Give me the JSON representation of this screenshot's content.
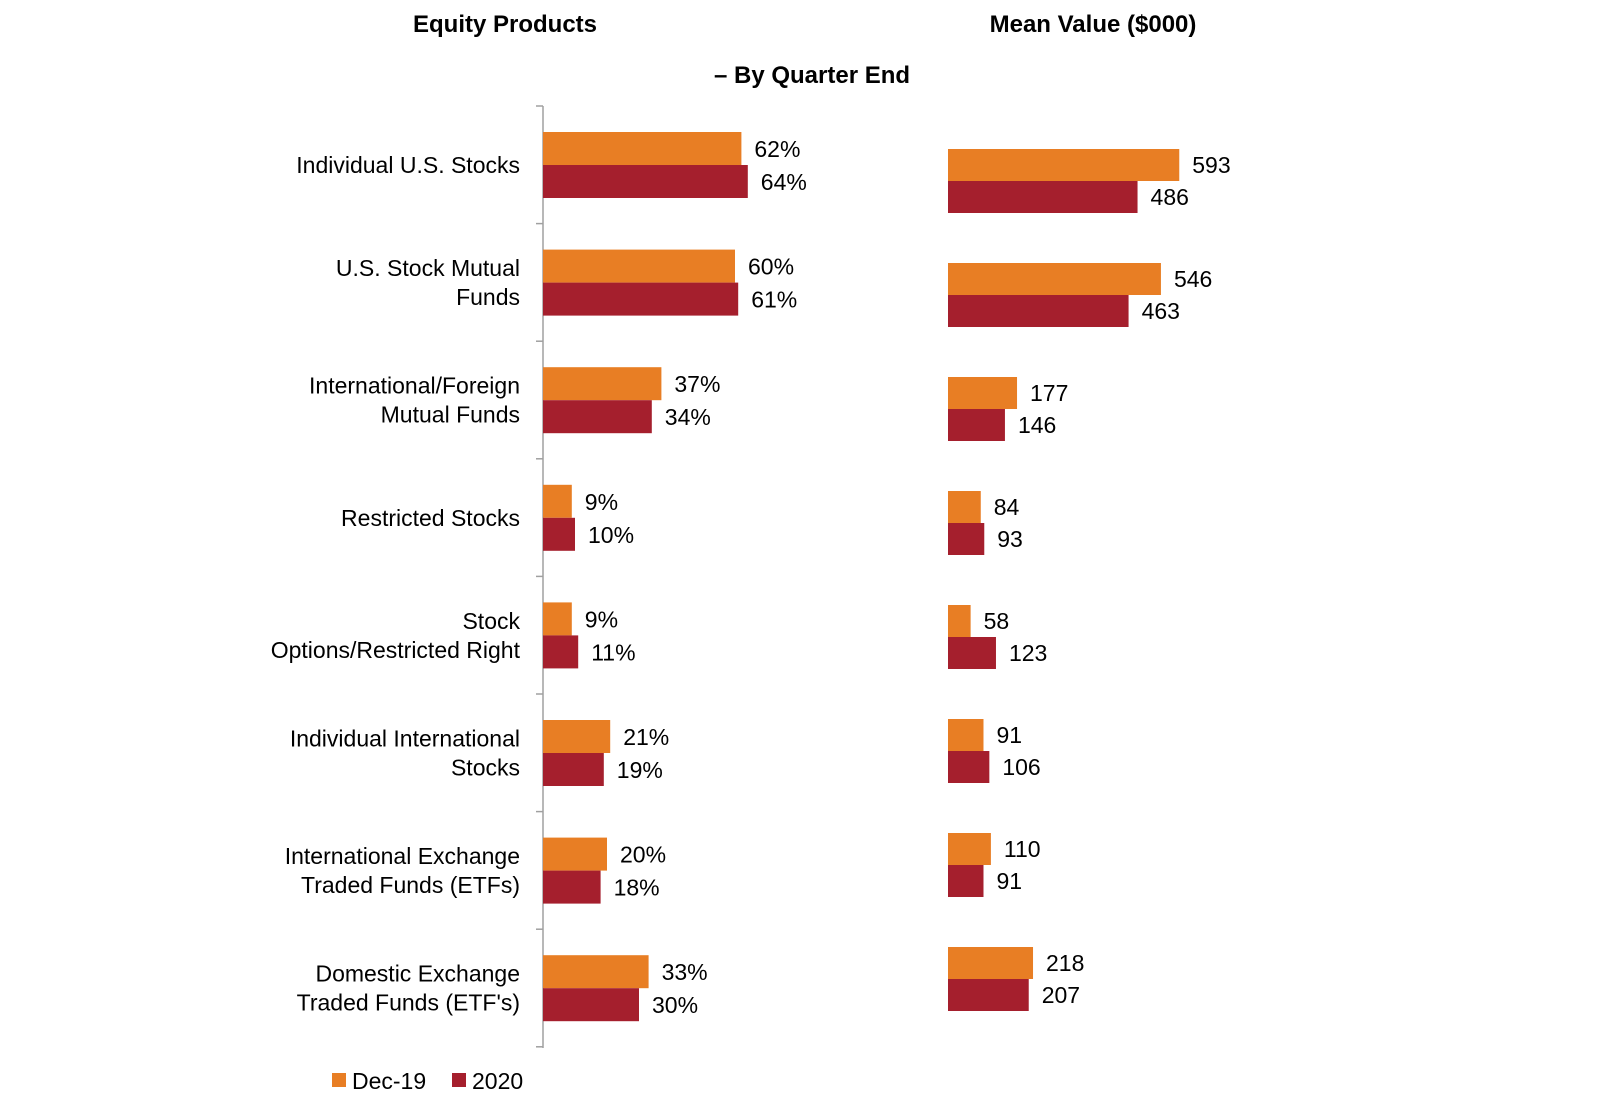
{
  "titles": {
    "left": "Equity Products",
    "right": "Mean Value ($000)",
    "subtitle": "– By Quarter End"
  },
  "colors": {
    "dec19": "#E87E24",
    "y2020": "#A51F2D",
    "axis": "#A0A0A0"
  },
  "legend": [
    {
      "label": "Dec-19",
      "color": "#E87E24"
    },
    {
      "label": "2020",
      "color": "#A51F2D"
    }
  ],
  "chart_data": [
    {
      "type": "bar",
      "orientation": "horizontal",
      "title": "Equity Products",
      "categories": [
        [
          "Individual U.S. Stocks"
        ],
        [
          "U.S. Stock Mutual",
          "Funds"
        ],
        [
          "International/Foreign",
          "Mutual Funds"
        ],
        [
          "Restricted Stocks"
        ],
        [
          "Stock",
          "Options/Restricted Right"
        ],
        [
          "Individual International",
          "Stocks"
        ],
        [
          "International Exchange",
          "Traded Funds (ETFs)"
        ],
        [
          "Domestic Exchange",
          "Traded Funds (ETF's)"
        ]
      ],
      "series": [
        {
          "name": "Dec-19",
          "values": [
            62,
            60,
            37,
            9,
            9,
            21,
            20,
            33
          ],
          "labels": [
            "62%",
            "60%",
            "37%",
            "9%",
            "9%",
            "21%",
            "20%",
            "33%"
          ]
        },
        {
          "name": "2020",
          "values": [
            64,
            61,
            34,
            10,
            11,
            19,
            18,
            30
          ],
          "labels": [
            "64%",
            "61%",
            "34%",
            "10%",
            "11%",
            "19%",
            "18%",
            "30%"
          ]
        }
      ],
      "unit": "%",
      "xlim": [
        0,
        100
      ],
      "grid": false,
      "legend_position": "bottom"
    },
    {
      "type": "bar",
      "orientation": "horizontal",
      "title": "Mean Value ($000)",
      "series": [
        {
          "name": "Dec-19",
          "values": [
            593,
            546,
            177,
            84,
            58,
            91,
            110,
            218
          ],
          "labels": [
            "593",
            "546",
            "177",
            "84",
            "58",
            "91",
            "110",
            "218"
          ]
        },
        {
          "name": "2020",
          "values": [
            486,
            463,
            146,
            93,
            123,
            106,
            91,
            207
          ],
          "labels": [
            "486",
            "463",
            "146",
            "93",
            "123",
            "106",
            "91",
            "207"
          ]
        }
      ],
      "xlim": [
        0,
        1000
      ],
      "grid": false
    }
  ]
}
